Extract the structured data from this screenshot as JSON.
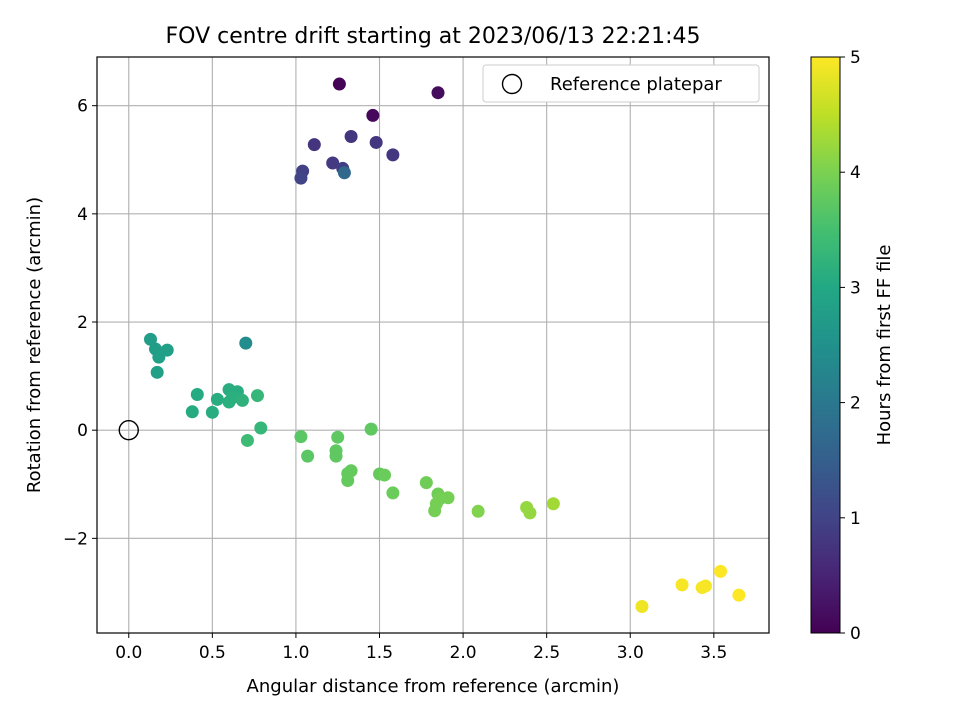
{
  "chart_data": {
    "type": "scatter",
    "title": "FOV centre drift starting at 2023/06/13 22:21:45",
    "xlabel": "Angular distance from reference (arcmin)",
    "ylabel": "Rotation from reference (arcmin)",
    "xlim": [
      -0.19,
      3.83
    ],
    "ylim": [
      -3.75,
      6.9
    ],
    "xticks": [
      0.0,
      0.5,
      1.0,
      1.5,
      2.0,
      2.5,
      3.0,
      3.5
    ],
    "xtick_labels": [
      "0.0",
      "0.5",
      "1.0",
      "1.5",
      "2.0",
      "2.5",
      "3.0",
      "3.5"
    ],
    "yticks": [
      -2,
      0,
      2,
      4,
      6
    ],
    "ytick_labels": [
      "−2",
      "0",
      "2",
      "4",
      "6"
    ],
    "grid": true,
    "legend": {
      "position": "top-right",
      "entries": [
        "Reference platepar"
      ]
    },
    "reference": {
      "x": 0.0,
      "y": 0.0
    },
    "colorbar": {
      "label": "Hours from first FF file",
      "range": [
        0,
        5
      ],
      "ticks": [
        "0",
        "1",
        "2",
        "3",
        "4",
        "5"
      ],
      "colormap": "viridis"
    },
    "points": [
      {
        "x": 1.26,
        "y": 6.4,
        "c": 0.05
      },
      {
        "x": 1.46,
        "y": 5.82,
        "c": 0.1
      },
      {
        "x": 1.85,
        "y": 6.24,
        "c": 0.15
      },
      {
        "x": 1.11,
        "y": 5.28,
        "c": 0.75
      },
      {
        "x": 1.33,
        "y": 5.43,
        "c": 0.75
      },
      {
        "x": 1.48,
        "y": 5.32,
        "c": 0.8
      },
      {
        "x": 1.58,
        "y": 5.09,
        "c": 0.8
      },
      {
        "x": 1.22,
        "y": 4.94,
        "c": 0.85
      },
      {
        "x": 1.28,
        "y": 4.84,
        "c": 0.9
      },
      {
        "x": 1.04,
        "y": 4.79,
        "c": 0.95
      },
      {
        "x": 1.03,
        "y": 4.66,
        "c": 1.0
      },
      {
        "x": 1.29,
        "y": 4.76,
        "c": 1.7
      },
      {
        "x": 0.7,
        "y": 1.61,
        "c": 2.4
      },
      {
        "x": 0.13,
        "y": 1.68,
        "c": 2.75
      },
      {
        "x": 0.16,
        "y": 1.5,
        "c": 2.75
      },
      {
        "x": 0.23,
        "y": 1.48,
        "c": 2.8
      },
      {
        "x": 0.18,
        "y": 1.35,
        "c": 2.8
      },
      {
        "x": 0.17,
        "y": 1.07,
        "c": 2.8
      },
      {
        "x": 0.41,
        "y": 0.66,
        "c": 3.05
      },
      {
        "x": 0.38,
        "y": 0.34,
        "c": 3.05
      },
      {
        "x": 0.53,
        "y": 0.57,
        "c": 3.1
      },
      {
        "x": 0.5,
        "y": 0.33,
        "c": 3.1
      },
      {
        "x": 0.6,
        "y": 0.75,
        "c": 3.1
      },
      {
        "x": 0.65,
        "y": 0.71,
        "c": 3.1
      },
      {
        "x": 0.6,
        "y": 0.52,
        "c": 3.15
      },
      {
        "x": 0.62,
        "y": 0.6,
        "c": 3.15
      },
      {
        "x": 0.68,
        "y": 0.55,
        "c": 3.2
      },
      {
        "x": 0.77,
        "y": 0.64,
        "c": 3.3
      },
      {
        "x": 0.79,
        "y": 0.04,
        "c": 3.3
      },
      {
        "x": 0.71,
        "y": -0.19,
        "c": 3.4
      },
      {
        "x": 1.03,
        "y": -0.12,
        "c": 3.7
      },
      {
        "x": 1.07,
        "y": -0.48,
        "c": 3.7
      },
      {
        "x": 1.25,
        "y": -0.13,
        "c": 3.75
      },
      {
        "x": 1.24,
        "y": -0.38,
        "c": 3.75
      },
      {
        "x": 1.24,
        "y": -0.48,
        "c": 3.75
      },
      {
        "x": 1.45,
        "y": 0.02,
        "c": 3.75
      },
      {
        "x": 1.31,
        "y": -0.8,
        "c": 3.8
      },
      {
        "x": 1.33,
        "y": -0.75,
        "c": 3.8
      },
      {
        "x": 1.31,
        "y": -0.93,
        "c": 3.8
      },
      {
        "x": 1.5,
        "y": -0.81,
        "c": 3.8
      },
      {
        "x": 1.53,
        "y": -0.83,
        "c": 3.85
      },
      {
        "x": 1.58,
        "y": -1.16,
        "c": 3.85
      },
      {
        "x": 1.78,
        "y": -0.97,
        "c": 3.9
      },
      {
        "x": 1.85,
        "y": -1.18,
        "c": 3.9
      },
      {
        "x": 1.86,
        "y": -1.27,
        "c": 3.95
      },
      {
        "x": 1.91,
        "y": -1.25,
        "c": 3.95
      },
      {
        "x": 1.84,
        "y": -1.36,
        "c": 3.95
      },
      {
        "x": 1.83,
        "y": -1.49,
        "c": 3.95
      },
      {
        "x": 2.09,
        "y": -1.5,
        "c": 4.05
      },
      {
        "x": 2.38,
        "y": -1.43,
        "c": 4.2
      },
      {
        "x": 2.4,
        "y": -1.53,
        "c": 4.2
      },
      {
        "x": 2.54,
        "y": -1.36,
        "c": 4.3
      },
      {
        "x": 3.07,
        "y": -3.26,
        "c": 4.9
      },
      {
        "x": 3.31,
        "y": -2.86,
        "c": 4.95
      },
      {
        "x": 3.43,
        "y": -2.91,
        "c": 4.95
      },
      {
        "x": 3.45,
        "y": -2.88,
        "c": 4.95
      },
      {
        "x": 3.54,
        "y": -2.61,
        "c": 5.0
      },
      {
        "x": 3.65,
        "y": -3.05,
        "c": 5.0
      }
    ]
  }
}
